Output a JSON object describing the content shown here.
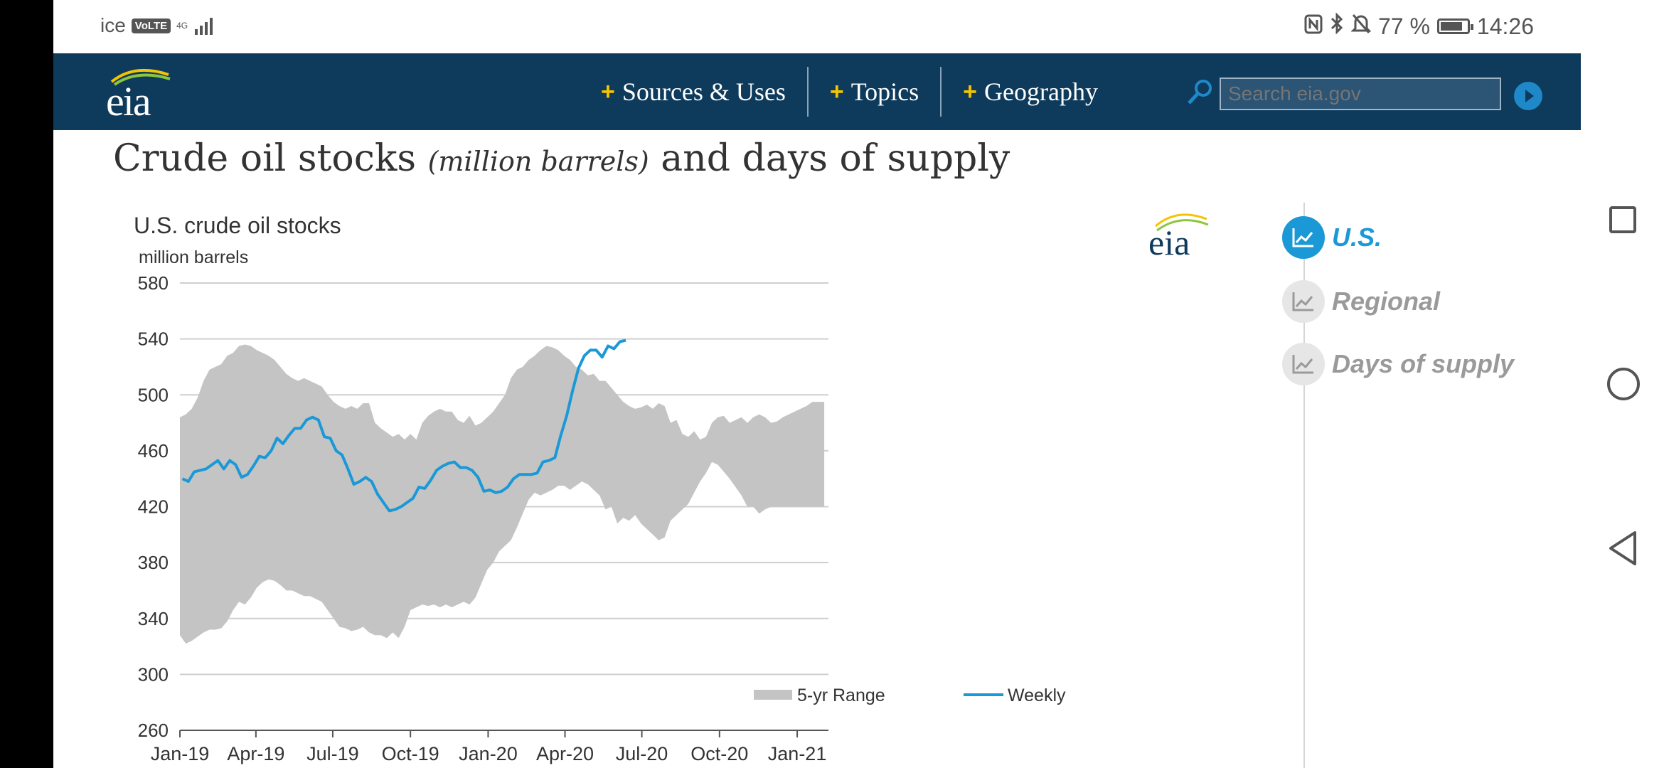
{
  "status_bar": {
    "carrier": "ice",
    "volte": "VoLTE",
    "network": "4G",
    "battery_percent": "77 %",
    "time": "14:26"
  },
  "header": {
    "logo_text": "eia",
    "nav": [
      {
        "label": "Sources & Uses"
      },
      {
        "label": "Topics"
      },
      {
        "label": "Geography"
      }
    ],
    "search_placeholder": "Search eia.gov"
  },
  "page_title": {
    "main": "Crude oil stocks",
    "unit": "(million barrels)",
    "rest": "and days of supply"
  },
  "chart_data": {
    "type": "area",
    "title": "U.S. crude oil stocks",
    "ylabel": "million barrels",
    "ylim": [
      260,
      580
    ],
    "yticks": [
      580,
      540,
      500,
      460,
      420,
      380,
      340,
      300,
      260
    ],
    "xticks": [
      "Jan-19",
      "Apr-19",
      "Jul-19",
      "Oct-19",
      "Jan-20",
      "Apr-20",
      "Jul-20",
      "Oct-20",
      "Jan-21"
    ],
    "logo_text": "eia",
    "colors": {
      "range": "#c4c4c4",
      "weekly": "#1a99d6",
      "grid": "#cfcfcf"
    },
    "series": [
      {
        "name": "5-yr Range",
        "x": [
          "2019-01-01",
          "2019-01-08",
          "2019-01-15",
          "2019-01-22",
          "2019-01-29",
          "2019-02-05",
          "2019-02-12",
          "2019-02-19",
          "2019-02-26",
          "2019-03-05",
          "2019-03-12",
          "2019-03-19",
          "2019-03-26",
          "2019-04-02",
          "2019-04-09",
          "2019-04-16",
          "2019-04-23",
          "2019-04-30",
          "2019-05-07",
          "2019-05-14",
          "2019-05-21",
          "2019-05-28",
          "2019-06-04",
          "2019-06-11",
          "2019-06-18",
          "2019-06-25",
          "2019-07-02",
          "2019-07-09",
          "2019-07-16",
          "2019-07-23",
          "2019-07-30",
          "2019-08-06",
          "2019-08-13",
          "2019-08-20",
          "2019-08-27",
          "2019-09-03",
          "2019-09-10",
          "2019-09-17",
          "2019-09-24",
          "2019-10-01",
          "2019-10-08",
          "2019-10-15",
          "2019-10-22",
          "2019-10-29",
          "2019-11-05",
          "2019-11-12",
          "2019-11-19",
          "2019-11-26",
          "2019-12-03",
          "2019-12-10",
          "2019-12-17",
          "2019-12-24",
          "2019-12-31",
          "2020-01-07",
          "2020-01-14",
          "2020-01-21",
          "2020-01-28",
          "2020-02-04",
          "2020-02-11",
          "2020-02-18",
          "2020-02-25",
          "2020-03-03",
          "2020-03-10",
          "2020-03-17",
          "2020-03-24",
          "2020-03-31",
          "2020-04-07",
          "2020-04-14",
          "2020-04-21",
          "2020-04-28",
          "2020-05-05",
          "2020-05-12",
          "2020-05-19",
          "2020-05-26",
          "2020-06-02",
          "2020-06-09",
          "2020-06-16",
          "2020-06-23",
          "2020-06-30",
          "2020-07-07",
          "2020-07-14",
          "2020-07-21",
          "2020-07-28",
          "2020-08-04",
          "2020-08-11",
          "2020-08-18",
          "2020-08-25",
          "2020-09-01",
          "2020-09-08",
          "2020-09-15",
          "2020-09-22",
          "2020-09-29",
          "2020-10-06",
          "2020-10-13",
          "2020-10-20",
          "2020-10-27",
          "2020-11-03",
          "2020-11-10",
          "2020-11-17",
          "2020-11-24",
          "2020-12-01",
          "2020-12-08",
          "2020-12-15",
          "2020-12-22",
          "2020-12-29",
          "2021-01-05",
          "2021-01-12",
          "2021-01-19",
          "2021-01-26",
          "2021-02-02"
        ],
        "high": [
          484,
          486,
          490,
          498,
          510,
          518,
          520,
          522,
          528,
          530,
          535,
          536,
          535,
          532,
          530,
          528,
          525,
          520,
          515,
          512,
          510,
          512,
          510,
          508,
          506,
          500,
          495,
          492,
          490,
          492,
          490,
          494,
          494,
          480,
          476,
          473,
          470,
          472,
          468,
          472,
          468,
          480,
          485,
          488,
          490,
          488,
          488,
          482,
          480,
          485,
          478,
          480,
          484,
          488,
          494,
          500,
          512,
          518,
          520,
          525,
          528,
          532,
          535,
          534,
          532,
          528,
          525,
          520,
          518,
          514,
          515,
          510,
          510,
          505,
          500,
          495,
          492,
          490,
          491,
          493,
          490,
          494,
          492,
          480,
          482,
          472,
          470,
          474,
          468,
          470,
          480,
          484,
          485,
          480,
          482,
          484,
          480,
          484,
          486,
          484,
          480,
          481,
          484,
          486,
          488,
          490,
          492,
          495,
          495,
          495
        ],
        "low": [
          328,
          322,
          324,
          327,
          330,
          332,
          332,
          333,
          338,
          346,
          352,
          350,
          355,
          362,
          366,
          368,
          367,
          364,
          360,
          360,
          358,
          356,
          356,
          354,
          352,
          346,
          340,
          334,
          333,
          331,
          332,
          334,
          330,
          328,
          328,
          326,
          330,
          326,
          334,
          346,
          348,
          350,
          349,
          350,
          348,
          350,
          348,
          350,
          352,
          350,
          355,
          365,
          375,
          380,
          388,
          392,
          396,
          405,
          415,
          425,
          430,
          428,
          430,
          432,
          435,
          435,
          432,
          435,
          438,
          436,
          432,
          428,
          418,
          420,
          408,
          412,
          410,
          414,
          408,
          404,
          400,
          396,
          398,
          410,
          414,
          418,
          422,
          430,
          438,
          444,
          452,
          450,
          445,
          440,
          434,
          428,
          420,
          420,
          415,
          418,
          420,
          420,
          420,
          420,
          420,
          420,
          420,
          420,
          420,
          420
        ]
      },
      {
        "name": "Weekly",
        "x": [
          "2019-01-04",
          "2019-01-11",
          "2019-01-18",
          "2019-01-25",
          "2019-02-01",
          "2019-02-08",
          "2019-02-15",
          "2019-02-22",
          "2019-03-01",
          "2019-03-08",
          "2019-03-15",
          "2019-03-22",
          "2019-03-29",
          "2019-04-05",
          "2019-04-12",
          "2019-04-19",
          "2019-04-26",
          "2019-05-03",
          "2019-05-10",
          "2019-05-17",
          "2019-05-24",
          "2019-05-31",
          "2019-06-07",
          "2019-06-14",
          "2019-06-21",
          "2019-06-28",
          "2019-07-05",
          "2019-07-12",
          "2019-07-19",
          "2019-07-26",
          "2019-08-02",
          "2019-08-09",
          "2019-08-16",
          "2019-08-23",
          "2019-08-30",
          "2019-09-06",
          "2019-09-13",
          "2019-09-20",
          "2019-09-27",
          "2019-10-04",
          "2019-10-11",
          "2019-10-18",
          "2019-10-25",
          "2019-11-01",
          "2019-11-08",
          "2019-11-15",
          "2019-11-22",
          "2019-11-29",
          "2019-12-06",
          "2019-12-13",
          "2019-12-20",
          "2019-12-27",
          "2020-01-03",
          "2020-01-10",
          "2020-01-17",
          "2020-01-24",
          "2020-01-31",
          "2020-02-07",
          "2020-02-14",
          "2020-02-21",
          "2020-02-28",
          "2020-03-06",
          "2020-03-13",
          "2020-03-20",
          "2020-03-27",
          "2020-04-03",
          "2020-04-10",
          "2020-04-17",
          "2020-04-24",
          "2020-05-01",
          "2020-05-08",
          "2020-05-15",
          "2020-05-22",
          "2020-05-29",
          "2020-06-05",
          "2020-06-12"
        ],
        "values": [
          440,
          438,
          445,
          446,
          447,
          450,
          453,
          447,
          453,
          450,
          441,
          443,
          449,
          456,
          455,
          460,
          469,
          465,
          471,
          476,
          476,
          482,
          484,
          482,
          470,
          469,
          460,
          457,
          447,
          436,
          438,
          441,
          438,
          429,
          423,
          417,
          418,
          420,
          423,
          426,
          434,
          433,
          439,
          446,
          449,
          451,
          452,
          448,
          448,
          446,
          441,
          431,
          432,
          430,
          431,
          434,
          440,
          443,
          443,
          443,
          444,
          452,
          453,
          455,
          471,
          485,
          503,
          519,
          528,
          532,
          532,
          527,
          535,
          533,
          538,
          539
        ]
      }
    ],
    "legend": [
      "5-yr Range",
      "Weekly"
    ],
    "legend_position": "bottom-right"
  },
  "side_panel": {
    "items": [
      {
        "label": "U.S.",
        "active": true
      },
      {
        "label": "Regional",
        "active": false
      },
      {
        "label": "Days of supply",
        "active": false
      }
    ]
  },
  "android_nav": {
    "buttons": [
      "recent-apps",
      "home",
      "back"
    ]
  }
}
